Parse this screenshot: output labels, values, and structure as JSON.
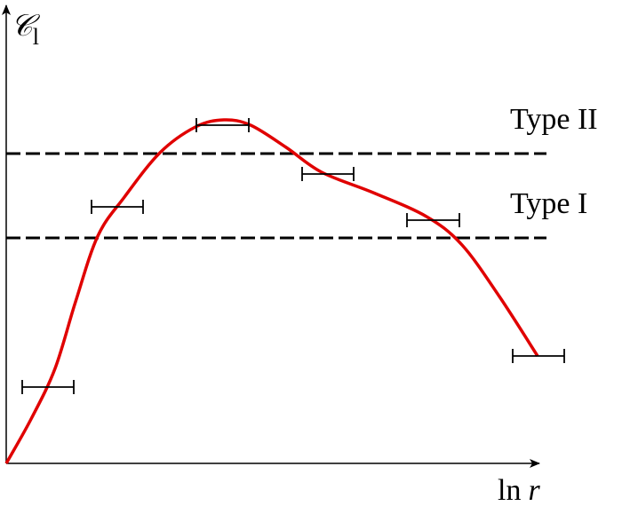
{
  "y_axis_label": {
    "symbol": "𝒞",
    "subscript": "l"
  },
  "x_axis_label": {
    "function": "ln",
    "variable": "r"
  },
  "thresholds": [
    {
      "label": "Type II"
    },
    {
      "label": "Type I"
    }
  ]
}
